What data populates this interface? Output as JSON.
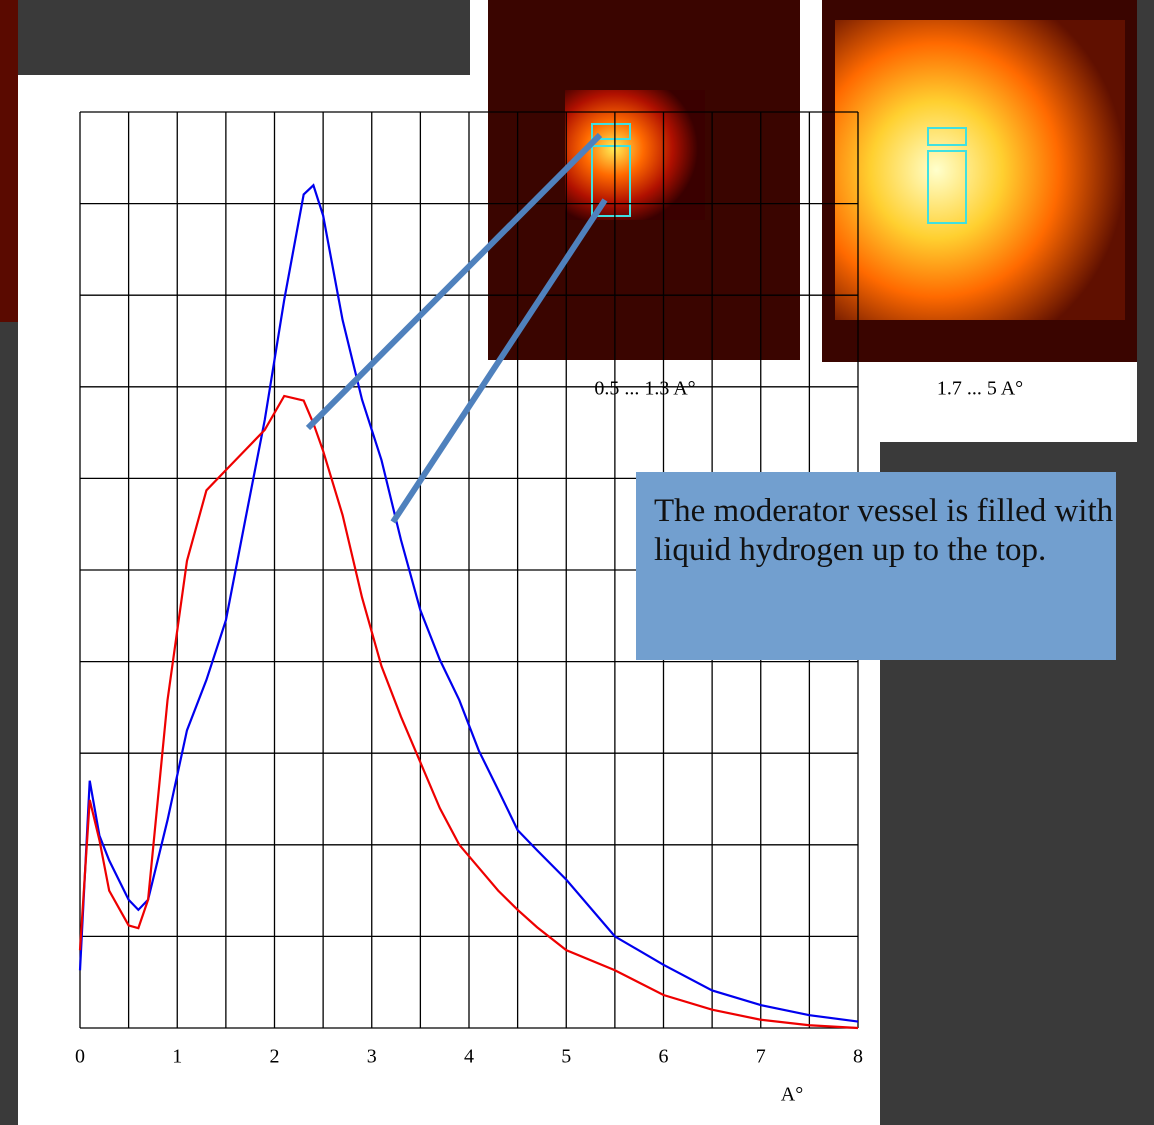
{
  "chart_data": {
    "type": "line",
    "x": [
      0,
      0.1,
      0.2,
      0.3,
      0.5,
      0.6,
      0.7,
      0.9,
      1.1,
      1.3,
      1.5,
      1.7,
      1.9,
      2.1,
      2.3,
      2.4,
      2.5,
      2.7,
      2.9,
      3.1,
      3.3,
      3.5,
      3.7,
      3.9,
      4.1,
      4.3,
      4.5,
      4.7,
      5,
      5.5,
      6,
      6.5,
      7,
      7.5,
      8
    ],
    "series": [
      {
        "color": "#0000ee",
        "values": [
          0.63,
          2.7,
          2.1,
          1.83,
          1.4,
          1.29,
          1.4,
          2.27,
          3.25,
          3.8,
          4.45,
          5.55,
          6.64,
          7.95,
          9.1,
          9.2,
          8.87,
          7.73,
          6.86,
          6.2,
          5.33,
          4.56,
          4.02,
          3.58,
          3.03,
          2.6,
          2.16,
          1.94,
          1.62,
          1.0,
          0.69,
          0.41,
          0.25,
          0.14,
          0.07
        ]
      },
      {
        "color": "#ee0000",
        "values": [
          0.85,
          2.49,
          2.05,
          1.5,
          1.12,
          1.09,
          1.4,
          3.58,
          5.1,
          5.87,
          6.09,
          6.31,
          6.53,
          6.9,
          6.85,
          6.6,
          6.3,
          5.6,
          4.7,
          3.95,
          3.4,
          2.9,
          2.4,
          2.0,
          1.75,
          1.5,
          1.29,
          1.1,
          0.85,
          0.63,
          0.36,
          0.2,
          0.09,
          0.03,
          0
        ]
      }
    ],
    "xlim": [
      0,
      8
    ],
    "xticks": [
      0,
      1,
      2,
      3,
      4,
      5,
      6,
      7,
      8
    ],
    "xgrid": [
      0,
      0.5,
      1,
      1.5,
      2,
      2.5,
      3,
      3.5,
      4,
      4.5,
      5,
      5.5,
      6,
      6.5,
      7,
      7.5,
      8
    ],
    "ylim": [
      0,
      10
    ],
    "yticks": [
      0,
      1,
      2,
      3,
      4,
      5,
      6,
      7,
      8,
      9,
      10
    ],
    "show_ytick_labels": false,
    "grid": true,
    "x_label": "A°",
    "image_captions": [
      "0.5 ... 1.3 A°",
      "1.7 ... 5 A°"
    ],
    "callout": "The moderator vessel is filled with liquid hydrogen up to the top."
  }
}
